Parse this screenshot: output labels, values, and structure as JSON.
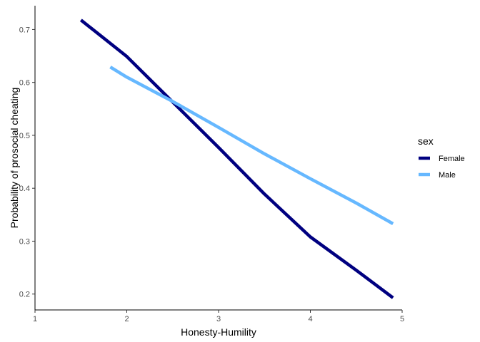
{
  "chart_data": {
    "type": "line",
    "xlabel": "Honesty-Humility",
    "ylabel": "Probability of prosocial cheating",
    "xlim": [
      1,
      5
    ],
    "ylim": [
      0.17,
      0.745
    ],
    "xticks": [
      1,
      2,
      3,
      4,
      5
    ],
    "yticks": [
      0.2,
      0.3,
      0.4,
      0.5,
      0.6,
      0.7
    ],
    "x_tick_labels": [
      "1",
      "2",
      "3",
      "4",
      "5"
    ],
    "y_tick_labels": [
      "0.2",
      "0.3",
      "0.4",
      "0.5",
      "0.6",
      "0.7"
    ],
    "grid": false,
    "legend": {
      "title": "sex",
      "placement": "right"
    },
    "series": [
      {
        "name": "Female",
        "color": "#000080",
        "x": [
          1.5,
          2.0,
          2.5,
          3.0,
          3.5,
          4.0,
          4.5,
          4.9
        ],
        "y": [
          0.718,
          0.649,
          0.563,
          0.477,
          0.389,
          0.308,
          0.245,
          0.193
        ]
      },
      {
        "name": "Male",
        "color": "#66b8ff",
        "x": [
          1.82,
          2.0,
          2.5,
          3.0,
          3.5,
          4.0,
          4.5,
          4.9
        ],
        "y": [
          0.629,
          0.61,
          0.564,
          0.515,
          0.465,
          0.418,
          0.372,
          0.333
        ]
      }
    ]
  }
}
